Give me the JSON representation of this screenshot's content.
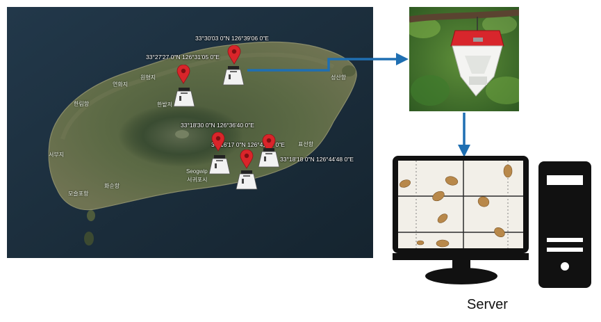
{
  "map": {
    "coordinates": [
      "33°30'03 0\"N 126°39'06 0\"E",
      "33°27'27 0\"N 126°31'05 0\"E",
      "33°18'30 0\"N 126°36'40 0\"E",
      "33°16'17 0\"N 126°41'24 0\"E",
      "33°18'18 0\"N 126°44'48 0\"E"
    ],
    "places": [
      "연화지",
      "원형지",
      "한림항",
      "한밭저",
      "성산항",
      "서부지",
      "화순항",
      "모슬포항",
      "표선항",
      "Seogwip",
      "서귀포시"
    ]
  },
  "diagram": {
    "server_label": "Server"
  },
  "colors": {
    "arrow": "#1f6fb2",
    "pin": "#d9252a",
    "trap_lid": "#d8262c"
  }
}
